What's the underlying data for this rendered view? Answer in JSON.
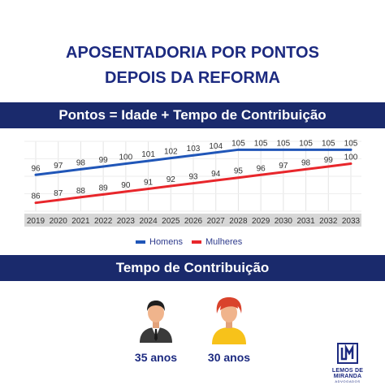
{
  "header": {
    "title_line1": "APOSENTADORIA POR PONTOS",
    "title_line2": "DEPOIS DA REFORMA"
  },
  "formula_band": "Pontos = Idade + Tempo de Contribuição",
  "contribution_band": "Tempo de Contribuição",
  "people": {
    "men_years": "35 anos",
    "women_years": "30 anos"
  },
  "logo": {
    "name": "LEMOS DE MIRANDA",
    "sub": "ADVOGADOS"
  },
  "colors": {
    "navy": "#1a2a6c",
    "homens": "#2056b8",
    "mulheres": "#e8262b"
  },
  "chart_data": {
    "type": "line",
    "categories": [
      "2019",
      "2020",
      "2021",
      "2022",
      "2023",
      "2024",
      "2025",
      "2026",
      "2027",
      "2028",
      "2029",
      "2030",
      "2031",
      "2032",
      "2033"
    ],
    "series": [
      {
        "name": "Homens",
        "values": [
          96,
          97,
          98,
          99,
          100,
          101,
          102,
          103,
          104,
          105,
          105,
          105,
          105,
          105,
          105
        ]
      },
      {
        "name": "Mulheres",
        "values": [
          86,
          87,
          88,
          89,
          90,
          91,
          92,
          93,
          94,
          95,
          96,
          97,
          98,
          99,
          100
        ]
      }
    ],
    "title": "",
    "xlabel": "",
    "ylabel": "",
    "grid": true,
    "legend_placement": "bottom-center"
  }
}
